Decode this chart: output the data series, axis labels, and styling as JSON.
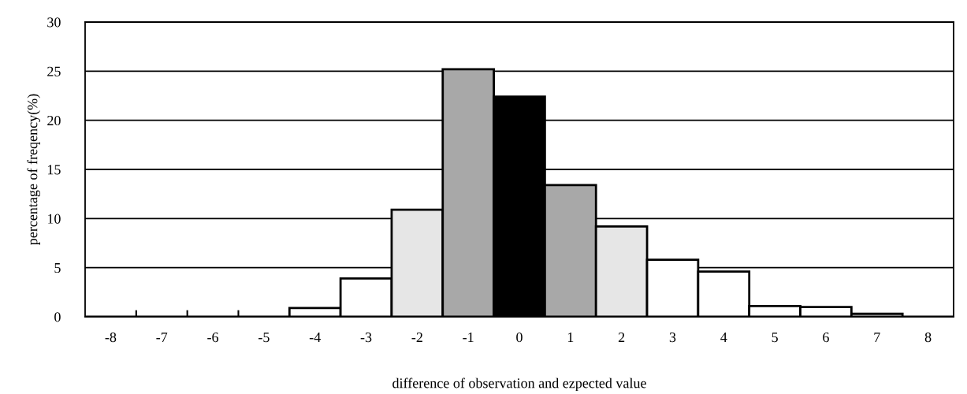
{
  "chart_data": {
    "type": "histogram",
    "xlabel": "difference of observation and ezpected value",
    "ylabel": "percentage of freqency(%)",
    "bins": [
      -8.5,
      -7.5,
      -6.5,
      -5.5,
      -4.5,
      -3.5,
      -2.5,
      -1.5,
      -0.5,
      0.5,
      1.5,
      2.5,
      3.5,
      4.5,
      5.5,
      6.5,
      7.5,
      8.5
    ],
    "values": [
      0,
      0,
      0,
      0,
      0.9,
      3.9,
      10.9,
      25.2,
      22.4,
      13.4,
      9.2,
      5.8,
      4.6,
      1.1,
      1.0,
      0.3,
      0
    ],
    "colors": [
      "#000000",
      "#000000",
      "#000000",
      "#000000",
      "#ffffff",
      "#ffffff",
      "#e6e6e6",
      "#a8a8a8",
      "#000000",
      "#a8a8a8",
      "#e6e6e6",
      "#ffffff",
      "#ffffff",
      "#ffffff",
      "#ffffff",
      "#ffffff",
      "#000000"
    ],
    "xlim": [
      -8.5,
      8.5
    ],
    "xticks": [
      -8,
      -7,
      -6,
      -5,
      -4,
      -3,
      -2,
      -1,
      0,
      1,
      2,
      3,
      4,
      5,
      6,
      7,
      8,
      {
        "value": -7.5,
        "label": null
      },
      {
        "value": -6.5,
        "label": null
      },
      {
        "value": -5.5,
        "label": null
      }
    ],
    "ylim": [
      0,
      30
    ],
    "yticks": [
      0,
      5,
      10,
      15,
      20,
      25,
      30
    ],
    "grid": "y"
  }
}
